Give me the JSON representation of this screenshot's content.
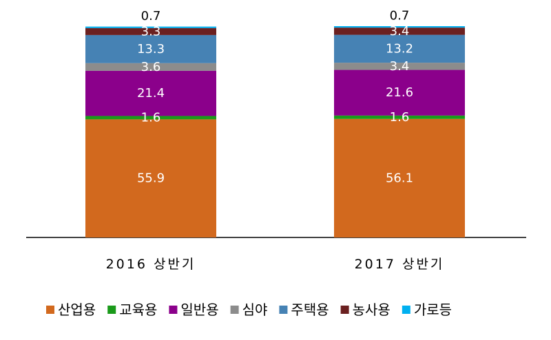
{
  "chart_data": {
    "type": "bar",
    "stacked": true,
    "categories": [
      "2016 상반기",
      "2017 상반기"
    ],
    "series": [
      {
        "name": "산업용",
        "color": "#D2691E",
        "values": [
          55.9,
          56.1
        ]
      },
      {
        "name": "교육용",
        "color": "#1A9A1A",
        "values": [
          1.6,
          1.6
        ]
      },
      {
        "name": "일반용",
        "color": "#8B008B",
        "values": [
          21.4,
          21.6
        ]
      },
      {
        "name": "심야",
        "color": "#8C8C8C",
        "values": [
          3.6,
          3.4
        ]
      },
      {
        "name": "주택용",
        "color": "#4682B4",
        "values": [
          13.3,
          13.2
        ]
      },
      {
        "name": "농사용",
        "color": "#6B2020",
        "values": [
          3.3,
          3.4
        ]
      },
      {
        "name": "가로등",
        "color": "#00B0F0",
        "values": [
          0.7,
          0.7
        ]
      }
    ],
    "data_labels_shown": true,
    "ylim": [
      0,
      100
    ],
    "grid": false,
    "legend": "bottom"
  }
}
